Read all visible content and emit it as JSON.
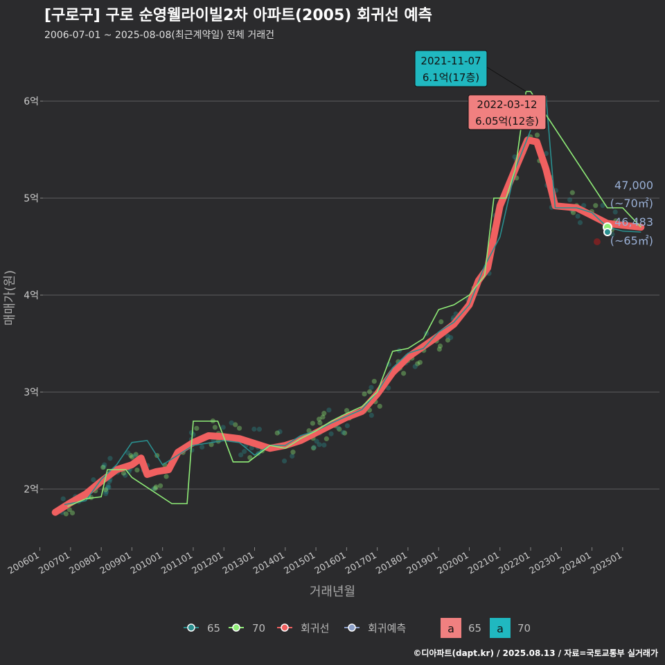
{
  "title": "[구로구] 구로 순영웰라이빌2차 아파트(2005) 회귀선 예측",
  "subtitle": "2006-07-01 ~ 2025-08-08(최근계약일) 전체 거래건",
  "footer": "©디아파트(dapt.kr) / 2025.08.13 / 자료=국토교통부 실거래가",
  "colors": {
    "background": "#2b2b2d",
    "size65": "#2a8f8f",
    "size70": "#90ee78",
    "regression": "#f06060",
    "prediction": "#8b9fc8",
    "label65": "#f08080",
    "label70": "#20b8c0"
  },
  "chart_data": {
    "type": "line",
    "title": "[구로구] 구로 순영웰라이빌2차 아파트(2005) 회귀선 예측",
    "xlabel": "거래년월",
    "ylabel": "매매가(원)",
    "xlim": [
      2006.1,
      2026.2
    ],
    "ylim": [
      1.4,
      6.6
    ],
    "yticks": [
      2,
      3,
      4,
      5,
      6
    ],
    "ytick_labels": [
      "2억",
      "3억",
      "4억",
      "5억",
      "6억"
    ],
    "xtick_values": [
      2006,
      2007,
      2008,
      2009,
      2010,
      2011,
      2012,
      2013,
      2014,
      2015,
      2016,
      2017,
      2018,
      2019,
      2020,
      2021,
      2022,
      2023,
      2024,
      2025
    ],
    "xtick_labels": [
      "200601",
      "200701",
      "200801",
      "200901",
      "201001",
      "201101",
      "201201",
      "201301",
      "201401",
      "201501",
      "201601",
      "201701",
      "201801",
      "201901",
      "202001",
      "202101",
      "202201",
      "202301",
      "202401",
      "202501"
    ],
    "series": [
      {
        "name": "회귀선",
        "points": [
          [
            2006.5,
            1.76
          ],
          [
            2007.0,
            1.86
          ],
          [
            2007.5,
            1.95
          ],
          [
            2008.0,
            2.08
          ],
          [
            2008.5,
            2.2
          ],
          [
            2009.0,
            2.25
          ],
          [
            2009.3,
            2.32
          ],
          [
            2009.5,
            2.15
          ],
          [
            2009.8,
            2.18
          ],
          [
            2010.2,
            2.2
          ],
          [
            2010.5,
            2.38
          ],
          [
            2011.0,
            2.48
          ],
          [
            2011.5,
            2.55
          ],
          [
            2012.0,
            2.54
          ],
          [
            2012.5,
            2.52
          ],
          [
            2013.0,
            2.47
          ],
          [
            2013.5,
            2.42
          ],
          [
            2014.0,
            2.45
          ],
          [
            2014.5,
            2.5
          ],
          [
            2015.0,
            2.58
          ],
          [
            2015.5,
            2.66
          ],
          [
            2016.0,
            2.74
          ],
          [
            2016.5,
            2.8
          ],
          [
            2017.0,
            2.98
          ],
          [
            2017.5,
            3.2
          ],
          [
            2018.0,
            3.36
          ],
          [
            2018.5,
            3.47
          ],
          [
            2019.0,
            3.58
          ],
          [
            2019.5,
            3.7
          ],
          [
            2020.0,
            3.9
          ],
          [
            2020.3,
            4.15
          ],
          [
            2020.6,
            4.28
          ],
          [
            2021.0,
            4.92
          ],
          [
            2021.5,
            5.3
          ],
          [
            2021.9,
            5.6
          ],
          [
            2022.2,
            5.58
          ],
          [
            2022.5,
            5.3
          ],
          [
            2022.8,
            4.92
          ],
          [
            2023.5,
            4.9
          ],
          [
            2024.0,
            4.82
          ],
          [
            2024.5,
            4.74
          ],
          [
            2025.0,
            4.72
          ],
          [
            2025.6,
            4.7
          ]
        ]
      },
      {
        "name": "65",
        "points": [
          [
            2006.8,
            1.84
          ],
          [
            2007.5,
            1.88
          ],
          [
            2008.0,
            2.1
          ],
          [
            2008.5,
            2.25
          ],
          [
            2009.0,
            2.48
          ],
          [
            2009.5,
            2.5
          ],
          [
            2010.0,
            2.25
          ],
          [
            2010.5,
            2.35
          ],
          [
            2011.0,
            2.45
          ],
          [
            2012.0,
            2.5
          ],
          [
            2012.5,
            2.48
          ],
          [
            2013.0,
            2.35
          ],
          [
            2013.5,
            2.45
          ],
          [
            2014.0,
            2.45
          ],
          [
            2014.5,
            2.55
          ],
          [
            2015.0,
            2.6
          ],
          [
            2015.5,
            2.68
          ],
          [
            2016.0,
            2.75
          ],
          [
            2016.5,
            2.82
          ],
          [
            2017.0,
            3.0
          ],
          [
            2017.5,
            3.25
          ],
          [
            2018.0,
            3.4
          ],
          [
            2018.5,
            3.45
          ],
          [
            2019.0,
            3.62
          ],
          [
            2019.5,
            3.72
          ],
          [
            2020.0,
            3.9
          ],
          [
            2020.5,
            4.3
          ],
          [
            2021.0,
            4.6
          ],
          [
            2021.5,
            5.3
          ],
          [
            2022.0,
            5.7
          ],
          [
            2022.2,
            6.05
          ],
          [
            2022.5,
            6.05
          ],
          [
            2022.8,
            4.9
          ],
          [
            2023.5,
            4.9
          ],
          [
            2024.0,
            4.85
          ],
          [
            2024.5,
            4.7
          ],
          [
            2025.0,
            4.66
          ],
          [
            2025.6,
            4.65
          ]
        ]
      },
      {
        "name": "70",
        "points": [
          [
            2006.9,
            1.82
          ],
          [
            2007.5,
            1.9
          ],
          [
            2008.0,
            1.92
          ],
          [
            2008.2,
            2.2
          ],
          [
            2008.8,
            2.2
          ],
          [
            2009.0,
            2.12
          ],
          [
            2010.3,
            1.85
          ],
          [
            2010.8,
            1.85
          ],
          [
            2011.0,
            2.7
          ],
          [
            2011.8,
            2.7
          ],
          [
            2012.3,
            2.28
          ],
          [
            2012.8,
            2.28
          ],
          [
            2013.5,
            2.45
          ],
          [
            2014.0,
            2.42
          ],
          [
            2014.5,
            2.52
          ],
          [
            2015.0,
            2.6
          ],
          [
            2015.5,
            2.7
          ],
          [
            2016.0,
            2.78
          ],
          [
            2016.5,
            2.85
          ],
          [
            2017.0,
            3.0
          ],
          [
            2017.5,
            3.42
          ],
          [
            2018.0,
            3.45
          ],
          [
            2018.5,
            3.55
          ],
          [
            2019.0,
            3.85
          ],
          [
            2019.5,
            3.9
          ],
          [
            2020.0,
            4.0
          ],
          [
            2020.5,
            4.2
          ],
          [
            2020.8,
            5.0
          ],
          [
            2021.2,
            5.0
          ],
          [
            2021.5,
            5.3
          ],
          [
            2021.85,
            6.1
          ],
          [
            2022.0,
            6.1
          ],
          [
            2024.5,
            4.9
          ],
          [
            2025.0,
            4.9
          ],
          [
            2025.3,
            4.8
          ],
          [
            2025.6,
            4.7
          ]
        ]
      }
    ],
    "annotations": [
      {
        "date": "2021-11-07",
        "text": "6.1억(17층)",
        "x": 2021.85,
        "y": 6.1,
        "group": "70"
      },
      {
        "date": "2022-03-12",
        "text": "6.05억(12층)",
        "x": 2022.2,
        "y": 6.05,
        "group": "65"
      }
    ],
    "predictions": [
      {
        "value": "47,000",
        "area": "(~70㎡)",
        "y": 4.7
      },
      {
        "value": "46,483",
        "area": "(~65㎡)",
        "y": 4.65
      }
    ],
    "legend": {
      "items": [
        "65",
        "70",
        "회귀선",
        "회귀예측"
      ],
      "label_items": [
        "65",
        "70"
      ],
      "label_glyph": "a",
      "placement": "bottom"
    }
  }
}
